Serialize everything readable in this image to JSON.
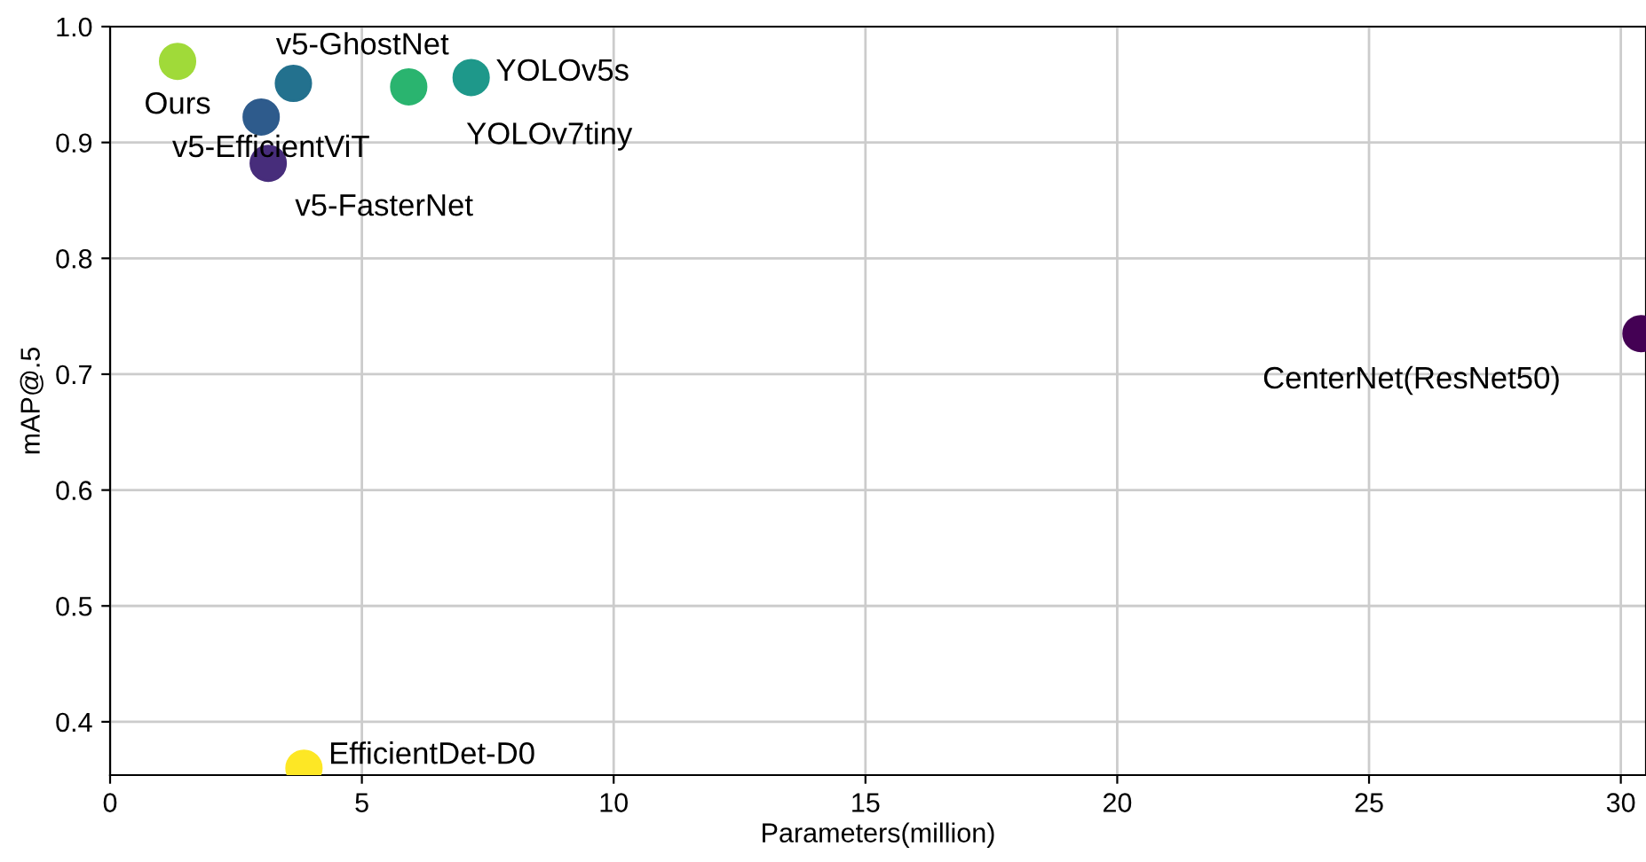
{
  "chart_data": {
    "type": "scatter",
    "xlabel": "Parameters(million)",
    "ylabel": "mAP@.5",
    "x": [
      1.34,
      3.64,
      3.0,
      3.14,
      5.93,
      7.17,
      30.4,
      3.85
    ],
    "values": [
      0.97,
      0.951,
      0.922,
      0.882,
      0.948,
      0.956,
      0.735,
      0.36
    ],
    "colors": [
      "#a0da39",
      "#23718e",
      "#2e5b8c",
      "#472d7b",
      "#2ab46f",
      "#1e988a",
      "#440154",
      "#fde725"
    ],
    "annotations": [
      {
        "text": "Ours",
        "x": 1.34,
        "y": 0.97
      },
      {
        "text": "v5-GhostNet",
        "x": 3.64,
        "y": 0.951
      },
      {
        "text": "v5-EfficientViT",
        "x": 3.0,
        "y": 0.922
      },
      {
        "text": "v5-FasterNet",
        "x": 3.14,
        "y": 0.882
      },
      {
        "text": "YOLOv7tiny",
        "x": 5.93,
        "y": 0.948
      },
      {
        "text": "YOLOv5s",
        "x": 7.17,
        "y": 0.956
      },
      {
        "text": "CenterNet(ResNet50)",
        "x": 30.4,
        "y": 0.735
      },
      {
        "text": "EfficientDet-D0",
        "x": 3.85,
        "y": 0.36
      }
    ],
    "xlim": [
      0,
      30.5
    ],
    "ylim": [
      0.354,
      1.0
    ],
    "xticks": [
      0,
      5,
      10,
      15,
      20,
      25,
      30
    ],
    "yticks": [
      0.4,
      0.5,
      0.6,
      0.7,
      0.8,
      0.9,
      {
        "value": 1,
        "label": "1.0"
      }
    ],
    "grid": true
  }
}
